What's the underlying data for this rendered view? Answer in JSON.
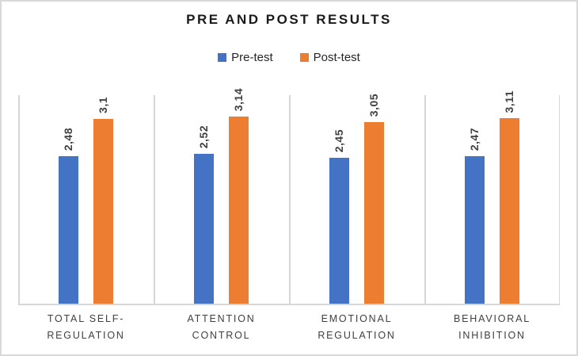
{
  "title": "PRE AND POST RESULTS",
  "legend": {
    "items": [
      {
        "label": "Pre-test",
        "color": "#4472C4"
      },
      {
        "label": "Post-test",
        "color": "#ED7D31"
      }
    ]
  },
  "chart_data": {
    "type": "bar",
    "title": "PRE AND POST RESULTS",
    "categories": [
      "TOTAL SELF-REGULATION",
      "ATTENTION CONTROL",
      "EMOTIONAL REGULATION",
      "BEHAVIORAL INHIBITION"
    ],
    "categories_display": [
      [
        "TOTAL SELF-",
        "REGULATION"
      ],
      [
        "ATTENTION",
        "CONTROL"
      ],
      [
        "EMOTIONAL",
        "REGULATION"
      ],
      [
        "BEHAVIORAL",
        "INHIBITION"
      ]
    ],
    "series": [
      {
        "name": "Pre-test",
        "color": "#4472C4",
        "values": [
          2.48,
          2.52,
          2.45,
          2.47
        ],
        "labels": [
          "2,48",
          "2,52",
          "2,45",
          "2,47"
        ]
      },
      {
        "name": "Post-test",
        "color": "#ED7D31",
        "values": [
          3.1,
          3.14,
          3.05,
          3.11
        ],
        "labels": [
          "3,1",
          "3,14",
          "3,05",
          "3,11"
        ]
      }
    ],
    "ylim": [
      0,
      3.5
    ],
    "xlabel": "",
    "ylabel": "",
    "grid": false,
    "legend_position": "top",
    "value_label_rotation": -90,
    "axis_color": "#D6D6D6",
    "text_color": "#404040"
  }
}
